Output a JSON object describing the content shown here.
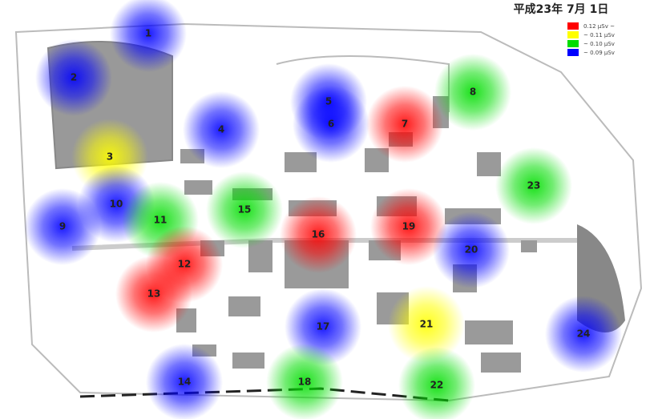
{
  "title": "平成23年 7月 1日",
  "legend": [
    {
      "label": "0.12 μSv ~",
      "color": "#ff0000"
    },
    {
      "label": "~ 0.11 μSv",
      "color": "#ffff00"
    },
    {
      "label": "~ 0.10 μSv",
      "color": "#00dd00"
    },
    {
      "label": "~ 0.09 μSv",
      "color": "#0000ff"
    }
  ],
  "points": [
    {
      "label": "1",
      "color": "#0000ff"
    },
    {
      "label": "2",
      "color": "#0000ff"
    },
    {
      "label": "3",
      "color": "#ffff00"
    },
    {
      "label": "4",
      "color": "#0000ff"
    },
    {
      "label": "5",
      "color": "#0000ff"
    },
    {
      "label": "6",
      "color": "#0000ff"
    },
    {
      "label": "7",
      "color": "#ff0000"
    },
    {
      "label": "8",
      "color": "#00dd00"
    },
    {
      "label": "9",
      "color": "#0000ff"
    },
    {
      "label": "10",
      "color": "#0000ff"
    },
    {
      "label": "11",
      "color": "#00dd00"
    },
    {
      "label": "12",
      "color": "#ff0000"
    },
    {
      "label": "13",
      "color": "#ff0000"
    },
    {
      "label": "14",
      "color": "#0000ff"
    },
    {
      "label": "15",
      "color": "#00dd00"
    },
    {
      "label": "16",
      "color": "#ff0000"
    },
    {
      "label": "17",
      "color": "#0000ff"
    },
    {
      "label": "18",
      "color": "#00dd00"
    },
    {
      "label": "19",
      "color": "#ff0000"
    },
    {
      "label": "20",
      "color": "#0000ff"
    },
    {
      "label": "21",
      "color": "#ffff00"
    },
    {
      "label": "22",
      "color": "#00dd00"
    },
    {
      "label": "23",
      "color": "#00dd00"
    },
    {
      "label": "24",
      "color": "#0000ff"
    }
  ]
}
